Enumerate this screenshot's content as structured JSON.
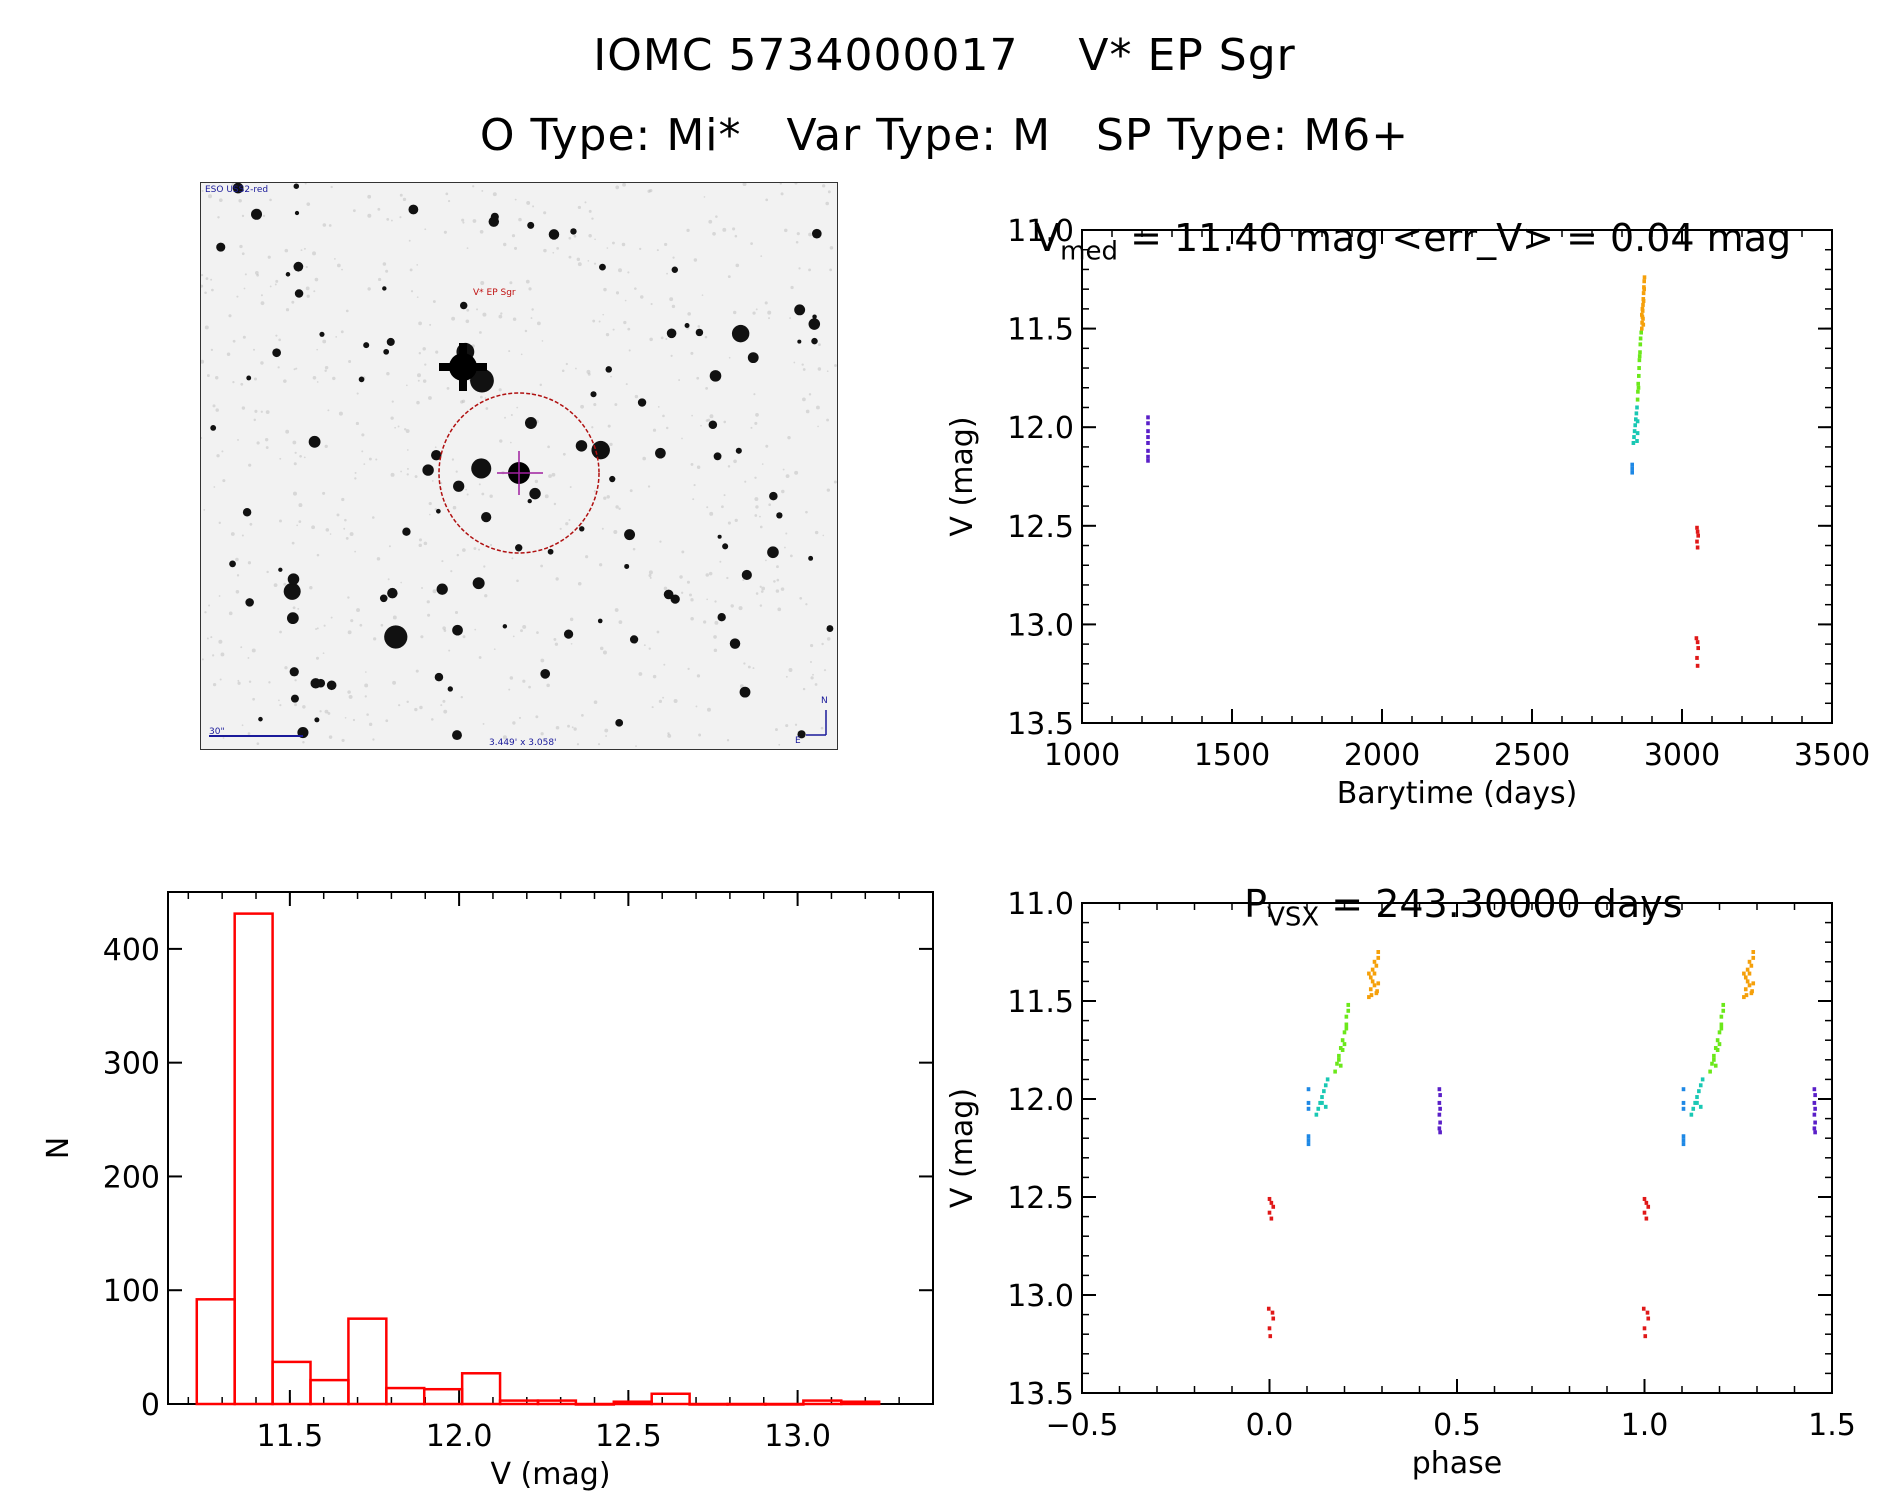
{
  "header": {
    "line1": "IOMC 5734000017    V* EP Sgr",
    "line2": "O Type: Mi*   Var Type: M   SP Type: M6+"
  },
  "image_panel": {
    "survey_label": "ESO USS2-red",
    "target_label": "V* EP Sgr",
    "scale_label": "30\"",
    "fov_label": "3.449' x 3.058'",
    "north_label": "N",
    "east_label": "E"
  },
  "lightcurve": {
    "title_main": "V",
    "title_sub": "med",
    "title_rest": " = 11.40 mag <err_V> = 0.04 mag"
  },
  "phase_panel": {
    "title_main": "P",
    "title_sub": "VSX",
    "title_rest": " = 243.30000 days"
  },
  "colors": {
    "violet": "#5a1fc8",
    "blue": "#1e88e5",
    "teal": "#19c8b4",
    "green": "#6be81a",
    "orange": "#f5a00a",
    "red": "#e01818",
    "hist": "#ff0000"
  },
  "chart_data": [
    {
      "id": "lightcurve",
      "type": "scatter",
      "xlabel": "Barytime (days)",
      "ylabel": "V (mag)",
      "xlim": [
        1000,
        3500
      ],
      "ylim": [
        13.5,
        11.0
      ],
      "xticks": [
        "1000",
        "1500",
        "2000",
        "2500",
        "3000",
        "3500"
      ],
      "yticks": [
        "11.0",
        "11.5",
        "12.0",
        "12.5",
        "13.0",
        "13.5"
      ],
      "series": [
        {
          "color": "violet",
          "points": [
            [
              1220,
              11.95
            ],
            [
              1220,
              11.98
            ],
            [
              1220,
              12.02
            ],
            [
              1220,
              12.05
            ],
            [
              1220,
              12.08
            ],
            [
              1220,
              12.12
            ],
            [
              1220,
              12.15
            ],
            [
              1220,
              12.17
            ]
          ]
        },
        {
          "color": "blue",
          "points": [
            [
              2834,
              12.19
            ],
            [
              2834,
              12.21
            ],
            [
              2834,
              12.23
            ]
          ]
        },
        {
          "color": "teal",
          "points": [
            [
              2838,
              12.08
            ],
            [
              2840,
              12.05
            ],
            [
              2842,
              12.02
            ],
            [
              2844,
              11.99
            ],
            [
              2846,
              11.96
            ],
            [
              2848,
              11.93
            ],
            [
              2850,
              11.9
            ],
            [
              2850,
              12.07
            ],
            [
              2852,
              12.03
            ],
            [
              2852,
              11.97
            ]
          ]
        },
        {
          "color": "green",
          "points": [
            [
              2852,
              11.86
            ],
            [
              2853,
              11.82
            ],
            [
              2854,
              11.78
            ],
            [
              2856,
              11.74
            ],
            [
              2857,
              11.7
            ],
            [
              2858,
              11.66
            ],
            [
              2860,
              11.62
            ],
            [
              2861,
              11.58
            ],
            [
              2862,
              11.55
            ],
            [
              2864,
              11.52
            ],
            [
              2855,
              11.8
            ],
            [
              2859,
              11.64
            ]
          ]
        },
        {
          "color": "orange",
          "points": [
            [
              2866,
              11.5
            ],
            [
              2867,
              11.47
            ],
            [
              2868,
              11.44
            ],
            [
              2869,
              11.41
            ],
            [
              2870,
              11.38
            ],
            [
              2871,
              11.35
            ],
            [
              2872,
              11.32
            ],
            [
              2873,
              11.29
            ],
            [
              2874,
              11.26
            ],
            [
              2875,
              11.24
            ],
            [
              2868,
              11.4
            ],
            [
              2870,
              11.45
            ],
            [
              2872,
              11.36
            ],
            [
              2874,
              11.3
            ],
            [
              2866,
              11.43
            ],
            [
              2871,
              11.48
            ]
          ]
        },
        {
          "color": "red",
          "points": [
            [
              3050,
              12.51
            ],
            [
              3052,
              12.53
            ],
            [
              3054,
              12.55
            ],
            [
              3050,
              12.58
            ],
            [
              3052,
              12.61
            ],
            [
              3048,
              13.07
            ],
            [
              3052,
              13.09
            ],
            [
              3054,
              13.12
            ],
            [
              3050,
              13.17
            ],
            [
              3052,
              13.21
            ]
          ]
        }
      ]
    },
    {
      "id": "histogram",
      "type": "bar",
      "xlabel": "V (mag)",
      "ylabel": "N",
      "xlim": [
        11.14,
        13.4
      ],
      "ylim": [
        0,
        450
      ],
      "xticks": [
        "11.5",
        "12.0",
        "12.5",
        "13.0"
      ],
      "yticks": [
        "0",
        "100",
        "200",
        "300",
        "400"
      ],
      "bin_edges": [
        11.225,
        11.337,
        11.449,
        11.561,
        11.673,
        11.785,
        11.897,
        12.009,
        12.121,
        12.233,
        12.345,
        12.457,
        12.569,
        12.681,
        12.793,
        12.905,
        13.017,
        13.129,
        13.241
      ],
      "values": [
        92,
        431,
        37,
        21,
        75,
        14,
        13,
        27,
        3,
        3,
        0,
        2,
        9,
        0,
        0,
        0,
        3,
        2
      ]
    },
    {
      "id": "phase",
      "type": "scatter",
      "xlabel": "phase",
      "ylabel": "V (mag)",
      "xlim": [
        -0.5,
        1.5
      ],
      "ylim": [
        13.5,
        11.0
      ],
      "xticks": [
        "−0.5",
        "0.0",
        "0.5",
        "1.0",
        "1.5"
      ],
      "yticks": [
        "11.0",
        "11.5",
        "12.0",
        "12.5",
        "13.0",
        "13.5"
      ],
      "series": [
        {
          "color": "violet",
          "points": [
            [
              0.453,
              11.95
            ],
            [
              0.455,
              11.98
            ],
            [
              0.453,
              12.02
            ],
            [
              0.455,
              12.05
            ],
            [
              0.453,
              12.08
            ],
            [
              0.455,
              12.12
            ],
            [
              0.453,
              12.15
            ],
            [
              0.455,
              12.17
            ]
          ]
        },
        {
          "color": "blue",
          "points": [
            [
              0.104,
              11.95
            ],
            [
              0.104,
              12.02
            ],
            [
              0.104,
              12.05
            ],
            [
              0.104,
              12.19
            ],
            [
              0.104,
              12.21
            ],
            [
              0.104,
              12.23
            ]
          ]
        },
        {
          "color": "teal",
          "points": [
            [
              0.125,
              12.08
            ],
            [
              0.13,
              12.05
            ],
            [
              0.135,
              12.02
            ],
            [
              0.14,
              11.99
            ],
            [
              0.145,
              11.96
            ],
            [
              0.15,
              11.93
            ],
            [
              0.155,
              11.9
            ],
            [
              0.15,
              12.04
            ],
            [
              0.14,
              12.02
            ]
          ]
        },
        {
          "color": "green",
          "points": [
            [
              0.175,
              11.86
            ],
            [
              0.18,
              11.82
            ],
            [
              0.185,
              11.78
            ],
            [
              0.19,
              11.74
            ],
            [
              0.195,
              11.7
            ],
            [
              0.2,
              11.66
            ],
            [
              0.205,
              11.62
            ],
            [
              0.205,
              11.58
            ],
            [
              0.21,
              11.55
            ],
            [
              0.21,
              11.52
            ],
            [
              0.185,
              11.8
            ],
            [
              0.195,
              11.75
            ],
            [
              0.2,
              11.72
            ],
            [
              0.19,
              11.83
            ],
            [
              0.205,
              11.64
            ]
          ]
        },
        {
          "color": "orange",
          "points": [
            [
              0.265,
              11.48
            ],
            [
              0.27,
              11.44
            ],
            [
              0.275,
              11.4
            ],
            [
              0.28,
              11.36
            ],
            [
              0.285,
              11.32
            ],
            [
              0.29,
              11.28
            ],
            [
              0.29,
              11.25
            ],
            [
              0.27,
              11.38
            ],
            [
              0.28,
              11.42
            ],
            [
              0.285,
              11.46
            ],
            [
              0.275,
              11.34
            ],
            [
              0.29,
              11.41
            ],
            [
              0.265,
              11.36
            ],
            [
              0.28,
              11.3
            ],
            [
              0.287,
              11.45
            ],
            [
              0.272,
              11.47
            ]
          ]
        },
        {
          "color": "red",
          "points": [
            [
              0.0,
              12.51
            ],
            [
              0.005,
              12.53
            ],
            [
              0.01,
              12.55
            ],
            [
              0.0,
              12.58
            ],
            [
              0.005,
              12.61
            ],
            [
              -0.002,
              13.07
            ],
            [
              0.008,
              13.09
            ],
            [
              0.01,
              13.12
            ],
            [
              0.0,
              13.17
            ],
            [
              0.002,
              13.21
            ]
          ]
        },
        {
          "color": "violet",
          "points": [
            [
              1.453,
              11.95
            ],
            [
              1.455,
              11.98
            ],
            [
              1.453,
              12.02
            ],
            [
              1.455,
              12.05
            ],
            [
              1.453,
              12.08
            ],
            [
              1.455,
              12.12
            ],
            [
              1.453,
              12.15
            ],
            [
              1.455,
              12.17
            ]
          ]
        },
        {
          "color": "blue",
          "points": [
            [
              1.104,
              11.95
            ],
            [
              1.104,
              12.02
            ],
            [
              1.104,
              12.05
            ],
            [
              1.104,
              12.19
            ],
            [
              1.104,
              12.21
            ],
            [
              1.104,
              12.23
            ]
          ]
        },
        {
          "color": "teal",
          "points": [
            [
              1.125,
              12.08
            ],
            [
              1.13,
              12.05
            ],
            [
              1.135,
              12.02
            ],
            [
              1.14,
              11.99
            ],
            [
              1.145,
              11.96
            ],
            [
              1.15,
              11.93
            ],
            [
              1.155,
              11.9
            ],
            [
              1.15,
              12.04
            ],
            [
              1.14,
              12.02
            ]
          ]
        },
        {
          "color": "green",
          "points": [
            [
              1.175,
              11.86
            ],
            [
              1.18,
              11.82
            ],
            [
              1.185,
              11.78
            ],
            [
              1.19,
              11.74
            ],
            [
              1.195,
              11.7
            ],
            [
              1.2,
              11.66
            ],
            [
              1.205,
              11.62
            ],
            [
              1.205,
              11.58
            ],
            [
              1.21,
              11.55
            ],
            [
              1.21,
              11.52
            ],
            [
              1.185,
              11.8
            ],
            [
              1.195,
              11.75
            ],
            [
              1.2,
              11.72
            ],
            [
              1.19,
              11.83
            ],
            [
              1.205,
              11.64
            ]
          ]
        },
        {
          "color": "orange",
          "points": [
            [
              1.265,
              11.48
            ],
            [
              1.27,
              11.44
            ],
            [
              1.275,
              11.4
            ],
            [
              1.28,
              11.36
            ],
            [
              1.285,
              11.32
            ],
            [
              1.29,
              11.28
            ],
            [
              1.29,
              11.25
            ],
            [
              1.27,
              11.38
            ],
            [
              1.28,
              11.42
            ],
            [
              1.285,
              11.46
            ],
            [
              1.275,
              11.34
            ],
            [
              1.29,
              11.41
            ],
            [
              1.265,
              11.36
            ],
            [
              1.28,
              11.3
            ],
            [
              1.287,
              11.45
            ],
            [
              1.272,
              11.47
            ]
          ]
        },
        {
          "color": "red",
          "points": [
            [
              1.0,
              12.51
            ],
            [
              1.005,
              12.53
            ],
            [
              1.01,
              12.55
            ],
            [
              1.0,
              12.58
            ],
            [
              1.005,
              12.61
            ],
            [
              0.998,
              13.07
            ],
            [
              1.008,
              13.09
            ],
            [
              1.01,
              13.12
            ],
            [
              1.0,
              13.17
            ],
            [
              1.002,
              13.21
            ]
          ]
        }
      ]
    }
  ]
}
